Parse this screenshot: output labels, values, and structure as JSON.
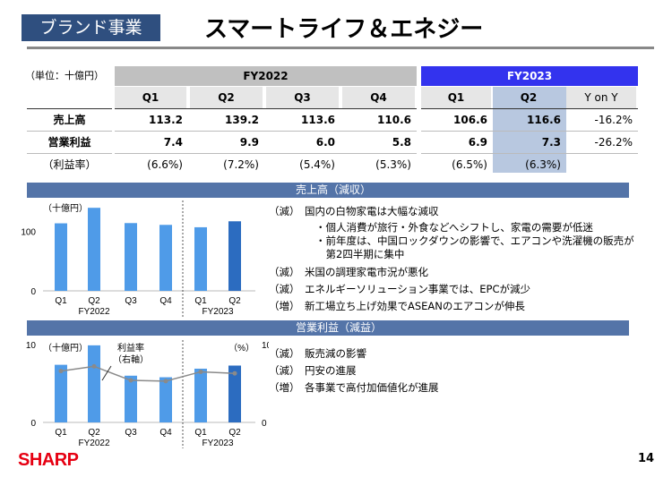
{
  "header": {
    "segment": "ブランド事業",
    "title": "スマートライフ＆エネジー"
  },
  "table": {
    "unit": "（単位：十億円）",
    "fy2022": "FY2022",
    "fy2023": "FY2023",
    "columns": [
      "Q1",
      "Q2",
      "Q3",
      "Q4",
      "Q1",
      "Q2",
      "Y on Y"
    ],
    "rows": [
      {
        "label": "売上高",
        "values": [
          "113.2",
          "139.2",
          "113.6",
          "110.6",
          "106.6",
          "116.6",
          "-16.2%"
        ]
      },
      {
        "label": "営業利益",
        "values": [
          "7.4",
          "9.9",
          "6.0",
          "5.8",
          "6.9",
          "7.3",
          "-26.2%"
        ]
      },
      {
        "label": "（利益率）",
        "values": [
          "(6.6%)",
          "(7.2%)",
          "(5.4%)",
          "(5.3%)",
          "(6.5%)",
          "(6.3%)",
          ""
        ]
      }
    ]
  },
  "sales_section": {
    "title": "売上高（減収）",
    "bullets": [
      {
        "tag": "（減）",
        "text": "国内の白物家電は大幅な減収",
        "subs": [
          "・個人消費が旅行・外食などへシフトし、家電の需要が低迷",
          "・前年度は、中国ロックダウンの影響で、エアコンや洗濯機の販売が",
          "　第2四半期に集中"
        ]
      },
      {
        "tag": "（減）",
        "text": "米国の調理家電市況が悪化",
        "subs": []
      },
      {
        "tag": "（減）",
        "text": "エネルギーソリューション事業では、EPCが減少",
        "subs": []
      },
      {
        "tag": "（増）",
        "text": "新工場立ち上げ効果でASEANのエアコンが伸長",
        "subs": []
      }
    ]
  },
  "profit_section": {
    "title": "営業利益（減益）",
    "bullets": [
      {
        "tag": "（減）",
        "text": "販売減の影響"
      },
      {
        "tag": "（減）",
        "text": "円安の進展"
      },
      {
        "tag": "（増）",
        "text": "各事業で高付加価値化が進展"
      }
    ]
  },
  "chart_data": [
    {
      "type": "bar",
      "title": "売上高",
      "ylabel": "（十億円）",
      "ylim": [
        0,
        150
      ],
      "yticks": [
        "0",
        "100"
      ],
      "categories": [
        "Q1",
        "Q2",
        "Q3",
        "Q4",
        "Q1",
        "Q2"
      ],
      "groups": [
        "FY2022",
        "FY2023"
      ],
      "values": [
        113.2,
        139.2,
        113.6,
        110.6,
        106.6,
        116.6
      ],
      "colors": [
        "#4f9be8",
        "#2c6cc0"
      ]
    },
    {
      "type": "bar",
      "title": "営業利益",
      "ylabel": "（十億円）",
      "y2label": "（%）",
      "ylim": [
        0,
        10
      ],
      "y2lim": [
        0,
        10
      ],
      "yticks": [
        "0",
        "10"
      ],
      "y2ticks": [
        "0",
        "10"
      ],
      "categories": [
        "Q1",
        "Q2",
        "Q3",
        "Q4",
        "Q1",
        "Q2"
      ],
      "groups": [
        "FY2022",
        "FY2023"
      ],
      "values": [
        7.4,
        9.9,
        6.0,
        5.8,
        6.9,
        7.3
      ],
      "line": {
        "name": "利益率",
        "axis_note": "（右軸）",
        "values": [
          6.6,
          7.2,
          5.4,
          5.3,
          6.5,
          6.3
        ],
        "color": "#8a8a8a"
      },
      "colors": [
        "#4f9be8",
        "#2c6cc0"
      ]
    }
  ],
  "footer": {
    "logo": "SHARP",
    "page": "14"
  }
}
